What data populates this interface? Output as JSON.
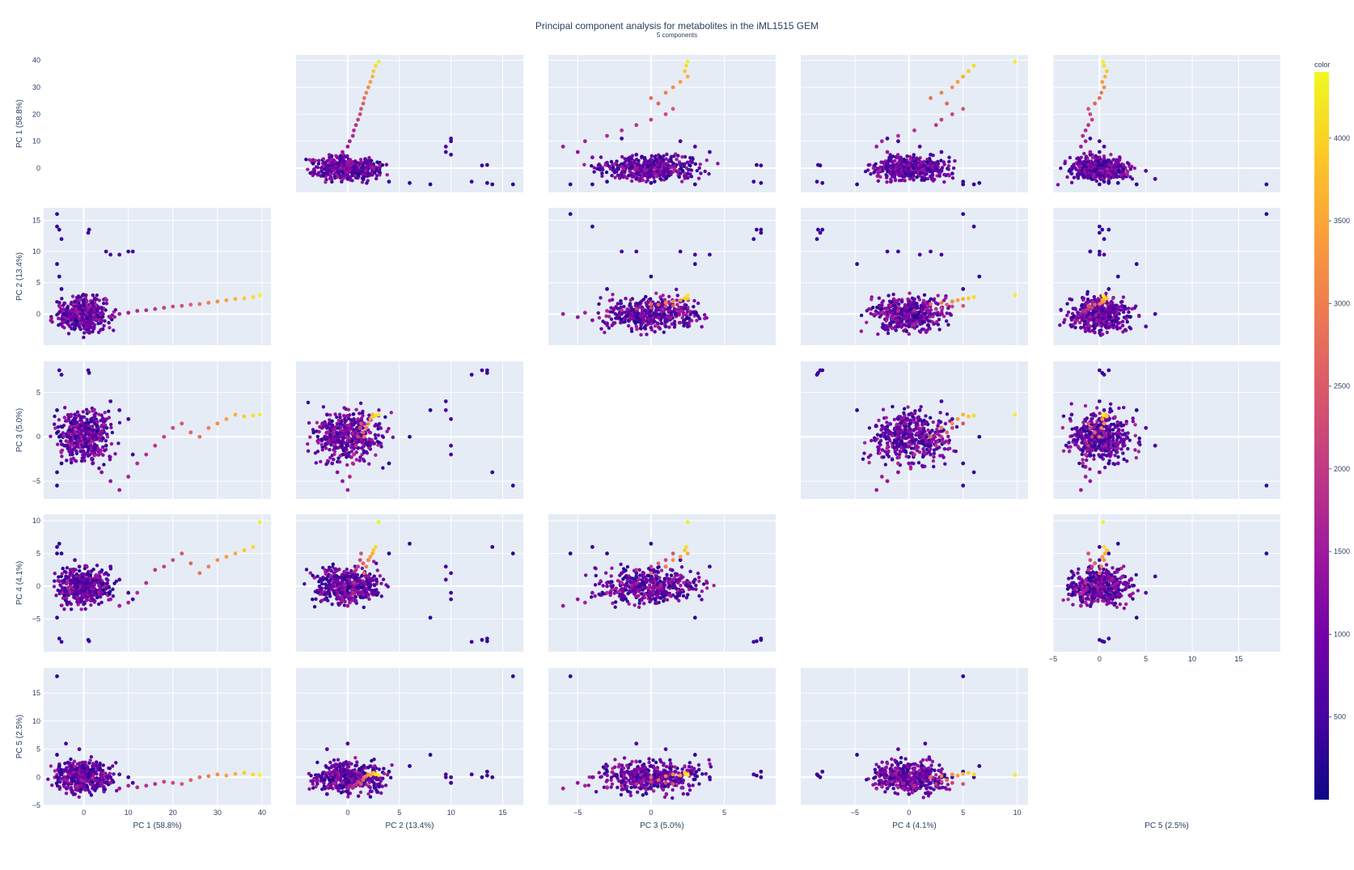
{
  "chart_data": {
    "type": "scatter",
    "title": "Principal component analysis for metabolites in the iML1515 GEM",
    "subtitle": "5 components",
    "dimensions": [
      "PC 1 (58.8%)",
      "PC 2 (13.4%)",
      "PC 3 (5.0%)",
      "PC 4 (4.1%)",
      "PC 5 (2.5%)"
    ],
    "diagonal_visible": false,
    "axes": [
      {
        "name": "PC 1 (58.8%)",
        "range": [
          -9,
          42
        ],
        "ticks": [
          0,
          10,
          20,
          30,
          40
        ]
      },
      {
        "name": "PC 2 (13.4%)",
        "range": [
          -5,
          17
        ],
        "ticks": [
          0,
          5,
          10,
          15
        ]
      },
      {
        "name": "PC 3 (5.0%)",
        "range": [
          -7,
          8.5
        ],
        "ticks": [
          -5,
          0,
          5
        ]
      },
      {
        "name": "PC 4 (4.1%)",
        "range": [
          -10,
          11
        ],
        "ticks": [
          -5,
          0,
          5,
          10
        ]
      },
      {
        "name": "PC 5 (2.5%)",
        "range": [
          -5,
          19.5
        ],
        "ticks": [
          -5,
          0,
          5,
          10,
          15
        ]
      }
    ],
    "y_tick_labels": [
      [
        "0",
        "10",
        "20",
        "30",
        "40"
      ],
      [
        "0",
        "5",
        "10",
        "15"
      ],
      [
        "−5",
        "0",
        "5"
      ],
      [
        "−5",
        "0",
        "5",
        "10"
      ],
      [
        "−5",
        "0",
        "5",
        "10",
        "15"
      ]
    ],
    "x_tick_labels": [
      [
        "0",
        "10",
        "20",
        "30",
        "40"
      ],
      [
        "0",
        "5",
        "10",
        "15"
      ],
      [
        "−5",
        "0",
        "5"
      ],
      [
        "−5",
        "0",
        "5",
        "10"
      ],
      [
        "−5",
        "0",
        "5",
        "10",
        "15"
      ]
    ],
    "colorbar": {
      "title": "color",
      "range": [
        0,
        4400
      ],
      "ticks": [
        500,
        1000,
        1500,
        2000,
        2500,
        3000,
        3500,
        4000
      ],
      "tick_labels": [
        "500",
        "1000",
        "1500",
        "2000",
        "2500",
        "3000",
        "3500",
        "4000"
      ],
      "colorscale": [
        "#0d0887",
        "#46039f",
        "#7201a8",
        "#9c179e",
        "#bd3786",
        "#d8576b",
        "#ed7953",
        "#fb9f3a",
        "#fdca26",
        "#f0f921"
      ]
    },
    "points": [
      [
        -6,
        16,
        -5.5,
        5,
        18,
        300
      ],
      [
        -6,
        14,
        -4,
        6,
        0,
        350
      ],
      [
        -5.5,
        13.5,
        7.5,
        -8,
        1,
        400
      ],
      [
        -5,
        12,
        7,
        -8.5,
        0.5,
        420
      ],
      [
        1,
        13,
        7.5,
        -8.2,
        0,
        380
      ],
      [
        1.2,
        13.5,
        7.2,
        -8.4,
        0.3,
        390
      ],
      [
        5,
        10,
        -1,
        2,
        -1,
        500
      ],
      [
        6,
        9.5,
        4,
        3,
        0,
        520
      ],
      [
        8,
        9.5,
        3,
        1,
        0.5,
        600
      ],
      [
        10,
        10,
        2,
        -1,
        0,
        450
      ],
      [
        11,
        10,
        -2,
        -2,
        -1,
        480
      ],
      [
        -6,
        8,
        3,
        -4.8,
        4,
        300
      ],
      [
        -5.5,
        6,
        0,
        6.5,
        2,
        320
      ],
      [
        -5,
        4,
        -3,
        5,
        1,
        340
      ],
      [
        -2,
        2,
        2,
        4,
        0,
        600
      ],
      [
        -1,
        1,
        1,
        3,
        -1,
        700
      ],
      [
        -3,
        0,
        -2,
        2,
        1,
        800
      ],
      [
        0,
        -1,
        0,
        1,
        0,
        900
      ],
      [
        2,
        -1.5,
        -3,
        0,
        2,
        1000
      ],
      [
        4,
        -1,
        -4,
        -1,
        0,
        1200
      ],
      [
        6,
        -0.5,
        -5,
        -2,
        -1,
        1400
      ],
      [
        8,
        0,
        -6,
        -3,
        -2,
        1500
      ],
      [
        10,
        0.2,
        -4.5,
        -2.5,
        -1.5,
        1600
      ],
      [
        12,
        0.5,
        -3,
        -1,
        -1.8,
        1750
      ],
      [
        14,
        0.6,
        -2,
        0.5,
        -1.5,
        1800
      ],
      [
        16,
        0.8,
        -1,
        2.5,
        -1.2,
        1900
      ],
      [
        18,
        1,
        0,
        3,
        -0.8,
        2100
      ],
      [
        20,
        1.2,
        1,
        4,
        -1,
        2200
      ],
      [
        22,
        1.3,
        1.5,
        5,
        -1.2,
        2400
      ],
      [
        24,
        1.5,
        0.5,
        3.5,
        -0.5,
        2600
      ],
      [
        26,
        1.6,
        0,
        2,
        0,
        2800
      ],
      [
        28,
        1.8,
        1,
        3,
        0.2,
        3000
      ],
      [
        30,
        2,
        1.5,
        4,
        0.5,
        3200
      ],
      [
        32,
        2.2,
        2,
        4.5,
        0.3,
        3400
      ],
      [
        34,
        2.4,
        2.5,
        5,
        0.6,
        3600
      ],
      [
        36,
        2.5,
        2.3,
        5.5,
        0.8,
        3900
      ],
      [
        38,
        2.7,
        2.4,
        6,
        0.5,
        4100
      ],
      [
        39.5,
        3,
        2.5,
        9.8,
        0.4,
        4300
      ],
      [
        -2,
        -2,
        2.5,
        0,
        -3,
        600
      ],
      [
        -4,
        0,
        -1,
        1.5,
        6,
        500
      ],
      [
        -1,
        -2,
        1,
        -1,
        5,
        700
      ],
      [
        2,
        -2.2,
        0,
        -2,
        -2,
        800
      ]
    ]
  }
}
